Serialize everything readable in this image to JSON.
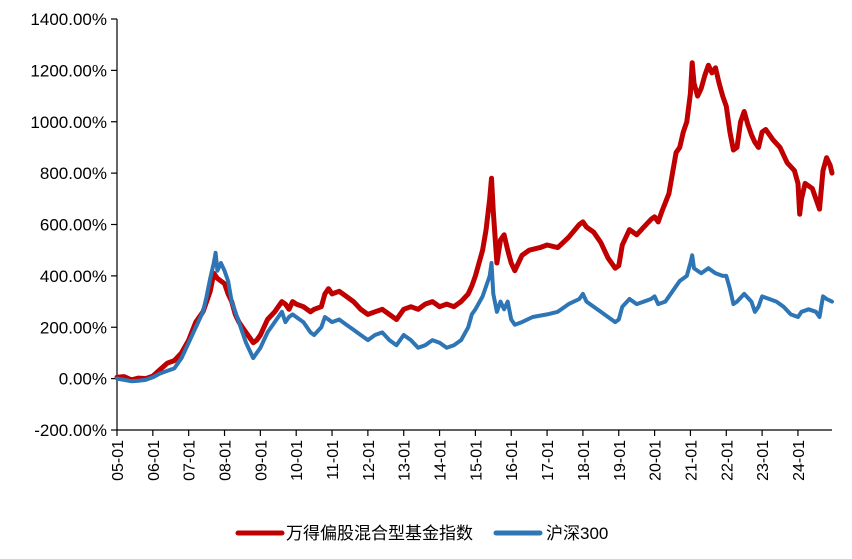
{
  "chart_data": {
    "type": "line",
    "title": "",
    "xlabel": "",
    "ylabel": "",
    "ylim": [
      -200,
      1400
    ],
    "y_tick_labels": [
      "1400.00%",
      "1200.00%",
      "1000.00%",
      "800.00%",
      "600.00%",
      "400.00%",
      "200.00%",
      "0.00%",
      "-200.00%"
    ],
    "y_tick_values": [
      1400,
      1200,
      1000,
      800,
      600,
      400,
      200,
      0,
      -200
    ],
    "x_tick_labels": [
      "05-01",
      "06-01",
      "07-01",
      "08-01",
      "09-01",
      "10-01",
      "11-01",
      "12-01",
      "13-01",
      "14-01",
      "15-01",
      "16-01",
      "17-01",
      "18-01",
      "19-01",
      "20-01",
      "21-01",
      "22-01",
      "23-01",
      "24-01"
    ],
    "x_range_years": [
      2005.0,
      2024.95
    ],
    "grid": false,
    "legend_position": "bottom",
    "series": [
      {
        "name": "万得偏股混合型基金指数",
        "color": "#c00000",
        "points": [
          [
            2005.0,
            5
          ],
          [
            2005.2,
            8
          ],
          [
            2005.4,
            -5
          ],
          [
            2005.6,
            2
          ],
          [
            2005.8,
            0
          ],
          [
            2006.0,
            10
          ],
          [
            2006.2,
            35
          ],
          [
            2006.4,
            60
          ],
          [
            2006.6,
            70
          ],
          [
            2006.8,
            100
          ],
          [
            2007.0,
            150
          ],
          [
            2007.2,
            220
          ],
          [
            2007.4,
            260
          ],
          [
            2007.5,
            300
          ],
          [
            2007.6,
            340
          ],
          [
            2007.7,
            410
          ],
          [
            2007.8,
            390
          ],
          [
            2007.9,
            380
          ],
          [
            2008.0,
            370
          ],
          [
            2008.1,
            330
          ],
          [
            2008.2,
            300
          ],
          [
            2008.3,
            250
          ],
          [
            2008.4,
            220
          ],
          [
            2008.5,
            200
          ],
          [
            2008.6,
            180
          ],
          [
            2008.7,
            160
          ],
          [
            2008.8,
            140
          ],
          [
            2008.9,
            150
          ],
          [
            2009.0,
            170
          ],
          [
            2009.2,
            230
          ],
          [
            2009.4,
            260
          ],
          [
            2009.6,
            300
          ],
          [
            2009.7,
            290
          ],
          [
            2009.8,
            270
          ],
          [
            2009.9,
            300
          ],
          [
            2010.0,
            290
          ],
          [
            2010.2,
            280
          ],
          [
            2010.4,
            260
          ],
          [
            2010.5,
            270
          ],
          [
            2010.7,
            280
          ],
          [
            2010.8,
            330
          ],
          [
            2010.9,
            350
          ],
          [
            2011.0,
            330
          ],
          [
            2011.2,
            340
          ],
          [
            2011.4,
            320
          ],
          [
            2011.6,
            300
          ],
          [
            2011.8,
            270
          ],
          [
            2012.0,
            250
          ],
          [
            2012.2,
            260
          ],
          [
            2012.4,
            270
          ],
          [
            2012.6,
            250
          ],
          [
            2012.8,
            230
          ],
          [
            2013.0,
            270
          ],
          [
            2013.2,
            280
          ],
          [
            2013.4,
            270
          ],
          [
            2013.6,
            290
          ],
          [
            2013.8,
            300
          ],
          [
            2014.0,
            280
          ],
          [
            2014.2,
            290
          ],
          [
            2014.4,
            280
          ],
          [
            2014.6,
            300
          ],
          [
            2014.8,
            330
          ],
          [
            2014.9,
            360
          ],
          [
            2015.0,
            400
          ],
          [
            2015.2,
            500
          ],
          [
            2015.3,
            580
          ],
          [
            2015.4,
            700
          ],
          [
            2015.45,
            780
          ],
          [
            2015.5,
            650
          ],
          [
            2015.6,
            450
          ],
          [
            2015.7,
            540
          ],
          [
            2015.8,
            560
          ],
          [
            2015.9,
            500
          ],
          [
            2016.0,
            450
          ],
          [
            2016.1,
            420
          ],
          [
            2016.3,
            480
          ],
          [
            2016.5,
            500
          ],
          [
            2016.8,
            510
          ],
          [
            2017.0,
            520
          ],
          [
            2017.3,
            510
          ],
          [
            2017.6,
            550
          ],
          [
            2017.9,
            600
          ],
          [
            2018.0,
            610
          ],
          [
            2018.1,
            590
          ],
          [
            2018.3,
            570
          ],
          [
            2018.5,
            530
          ],
          [
            2018.7,
            470
          ],
          [
            2018.9,
            430
          ],
          [
            2019.0,
            440
          ],
          [
            2019.1,
            520
          ],
          [
            2019.3,
            580
          ],
          [
            2019.5,
            560
          ],
          [
            2019.7,
            590
          ],
          [
            2019.9,
            620
          ],
          [
            2020.0,
            630
          ],
          [
            2020.1,
            610
          ],
          [
            2020.2,
            650
          ],
          [
            2020.4,
            720
          ],
          [
            2020.5,
            800
          ],
          [
            2020.6,
            880
          ],
          [
            2020.7,
            900
          ],
          [
            2020.8,
            960
          ],
          [
            2020.9,
            1000
          ],
          [
            2021.0,
            1110
          ],
          [
            2021.05,
            1230
          ],
          [
            2021.1,
            1150
          ],
          [
            2021.2,
            1100
          ],
          [
            2021.3,
            1130
          ],
          [
            2021.4,
            1180
          ],
          [
            2021.5,
            1220
          ],
          [
            2021.6,
            1190
          ],
          [
            2021.7,
            1210
          ],
          [
            2021.8,
            1150
          ],
          [
            2021.9,
            1100
          ],
          [
            2022.0,
            1060
          ],
          [
            2022.1,
            960
          ],
          [
            2022.2,
            890
          ],
          [
            2022.3,
            900
          ],
          [
            2022.4,
            1000
          ],
          [
            2022.5,
            1040
          ],
          [
            2022.6,
            990
          ],
          [
            2022.7,
            950
          ],
          [
            2022.8,
            920
          ],
          [
            2022.9,
            900
          ],
          [
            2023.0,
            960
          ],
          [
            2023.1,
            970
          ],
          [
            2023.2,
            950
          ],
          [
            2023.3,
            930
          ],
          [
            2023.5,
            900
          ],
          [
            2023.7,
            840
          ],
          [
            2023.9,
            810
          ],
          [
            2024.0,
            760
          ],
          [
            2024.05,
            640
          ],
          [
            2024.1,
            700
          ],
          [
            2024.2,
            760
          ],
          [
            2024.4,
            740
          ],
          [
            2024.5,
            700
          ],
          [
            2024.6,
            660
          ],
          [
            2024.7,
            810
          ],
          [
            2024.8,
            860
          ],
          [
            2024.9,
            830
          ],
          [
            2024.95,
            800
          ]
        ]
      },
      {
        "name": "沪深300",
        "color": "#2e75b6",
        "points": [
          [
            2005.0,
            0
          ],
          [
            2005.2,
            -5
          ],
          [
            2005.4,
            -10
          ],
          [
            2005.6,
            -8
          ],
          [
            2005.8,
            -5
          ],
          [
            2006.0,
            5
          ],
          [
            2006.2,
            20
          ],
          [
            2006.4,
            30
          ],
          [
            2006.6,
            40
          ],
          [
            2006.8,
            80
          ],
          [
            2007.0,
            140
          ],
          [
            2007.2,
            200
          ],
          [
            2007.4,
            260
          ],
          [
            2007.5,
            320
          ],
          [
            2007.6,
            390
          ],
          [
            2007.7,
            450
          ],
          [
            2007.75,
            490
          ],
          [
            2007.8,
            420
          ],
          [
            2007.9,
            450
          ],
          [
            2008.0,
            420
          ],
          [
            2008.1,
            380
          ],
          [
            2008.2,
            300
          ],
          [
            2008.3,
            260
          ],
          [
            2008.4,
            220
          ],
          [
            2008.5,
            180
          ],
          [
            2008.6,
            140
          ],
          [
            2008.7,
            110
          ],
          [
            2008.8,
            80
          ],
          [
            2008.9,
            100
          ],
          [
            2009.0,
            120
          ],
          [
            2009.2,
            180
          ],
          [
            2009.4,
            220
          ],
          [
            2009.6,
            260
          ],
          [
            2009.7,
            220
          ],
          [
            2009.8,
            240
          ],
          [
            2009.9,
            250
          ],
          [
            2010.0,
            240
          ],
          [
            2010.2,
            220
          ],
          [
            2010.4,
            180
          ],
          [
            2010.5,
            170
          ],
          [
            2010.7,
            200
          ],
          [
            2010.8,
            240
          ],
          [
            2010.9,
            230
          ],
          [
            2011.0,
            220
          ],
          [
            2011.2,
            230
          ],
          [
            2011.4,
            210
          ],
          [
            2011.6,
            190
          ],
          [
            2011.8,
            170
          ],
          [
            2012.0,
            150
          ],
          [
            2012.2,
            170
          ],
          [
            2012.4,
            180
          ],
          [
            2012.6,
            150
          ],
          [
            2012.8,
            130
          ],
          [
            2013.0,
            170
          ],
          [
            2013.2,
            150
          ],
          [
            2013.4,
            120
          ],
          [
            2013.6,
            130
          ],
          [
            2013.8,
            150
          ],
          [
            2014.0,
            140
          ],
          [
            2014.2,
            120
          ],
          [
            2014.4,
            130
          ],
          [
            2014.6,
            150
          ],
          [
            2014.8,
            200
          ],
          [
            2014.9,
            250
          ],
          [
            2015.0,
            270
          ],
          [
            2015.2,
            320
          ],
          [
            2015.4,
            400
          ],
          [
            2015.45,
            450
          ],
          [
            2015.5,
            330
          ],
          [
            2015.6,
            260
          ],
          [
            2015.7,
            300
          ],
          [
            2015.8,
            270
          ],
          [
            2015.9,
            300
          ],
          [
            2016.0,
            230
          ],
          [
            2016.1,
            210
          ],
          [
            2016.3,
            220
          ],
          [
            2016.6,
            240
          ],
          [
            2017.0,
            250
          ],
          [
            2017.3,
            260
          ],
          [
            2017.6,
            290
          ],
          [
            2017.9,
            310
          ],
          [
            2018.0,
            330
          ],
          [
            2018.1,
            300
          ],
          [
            2018.3,
            280
          ],
          [
            2018.5,
            260
          ],
          [
            2018.7,
            240
          ],
          [
            2018.9,
            220
          ],
          [
            2019.0,
            230
          ],
          [
            2019.1,
            280
          ],
          [
            2019.3,
            310
          ],
          [
            2019.5,
            290
          ],
          [
            2019.7,
            300
          ],
          [
            2019.9,
            310
          ],
          [
            2020.0,
            320
          ],
          [
            2020.1,
            290
          ],
          [
            2020.3,
            300
          ],
          [
            2020.5,
            340
          ],
          [
            2020.7,
            380
          ],
          [
            2020.9,
            400
          ],
          [
            2021.0,
            450
          ],
          [
            2021.05,
            480
          ],
          [
            2021.1,
            430
          ],
          [
            2021.3,
            410
          ],
          [
            2021.5,
            430
          ],
          [
            2021.7,
            410
          ],
          [
            2021.9,
            400
          ],
          [
            2022.0,
            400
          ],
          [
            2022.1,
            350
          ],
          [
            2022.2,
            290
          ],
          [
            2022.3,
            300
          ],
          [
            2022.5,
            330
          ],
          [
            2022.7,
            300
          ],
          [
            2022.8,
            260
          ],
          [
            2022.9,
            280
          ],
          [
            2023.0,
            320
          ],
          [
            2023.2,
            310
          ],
          [
            2023.4,
            300
          ],
          [
            2023.6,
            280
          ],
          [
            2023.8,
            250
          ],
          [
            2024.0,
            240
          ],
          [
            2024.1,
            260
          ],
          [
            2024.3,
            270
          ],
          [
            2024.5,
            260
          ],
          [
            2024.6,
            240
          ],
          [
            2024.7,
            320
          ],
          [
            2024.8,
            310
          ],
          [
            2024.95,
            300
          ]
        ]
      }
    ]
  }
}
